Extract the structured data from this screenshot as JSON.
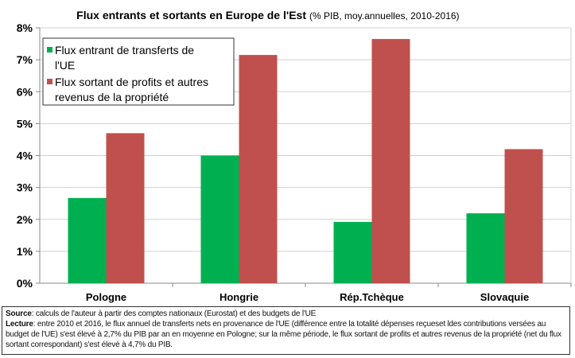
{
  "chart_data": {
    "type": "bar",
    "title": "Flux entrants et sortants en Europe de l'Est",
    "subtitle": "(% PIB, moy.annuelles, 2010-2016)",
    "categories": [
      "Pologne",
      "Hongrie",
      "Rép.Tchèque",
      "Slovaquie"
    ],
    "series": [
      {
        "name": "Flux entrant de transferts de l'UE",
        "name_lines": [
          "Flux entrant de transferts de",
          "l'UE"
        ],
        "color": "#00B050",
        "values": [
          2.67,
          4.0,
          1.92,
          2.19
        ]
      },
      {
        "name": "Flux sortant de profits et autres revenus de la propriété",
        "name_lines": [
          "Flux sortant de profits et autres",
          "revenus de la propriété"
        ],
        "color": "#C0504D",
        "values": [
          4.7,
          7.15,
          7.65,
          4.2
        ]
      }
    ],
    "ylim": [
      0,
      8
    ],
    "yticks": [
      "0%",
      "1%",
      "2%",
      "3%",
      "4%",
      "5%",
      "6%",
      "7%",
      "8%"
    ],
    "grid": true,
    "legend": "top-left"
  },
  "note": {
    "source_label": "Source",
    "source_text": ": calculs de l'auteur à partir des comptes nationaux (Eurostat) et des budgets de l'UE",
    "lecture_label": "Lecture",
    "lecture_text": ": entre 2010 et 2016, le flux annuel de transferts nets en provenance de l'UE (différence entre la totalité dépenses reçueset ldes contributions versées au budget de l'UE) s'est élevé à 2,7% du PIB par an en moyenne en Pologne; sur la même période, le flux sortant de profits et autres revenus de la propriété (net du flux sortant correspondant) s'est élevé à 4,7% du PIB."
  }
}
